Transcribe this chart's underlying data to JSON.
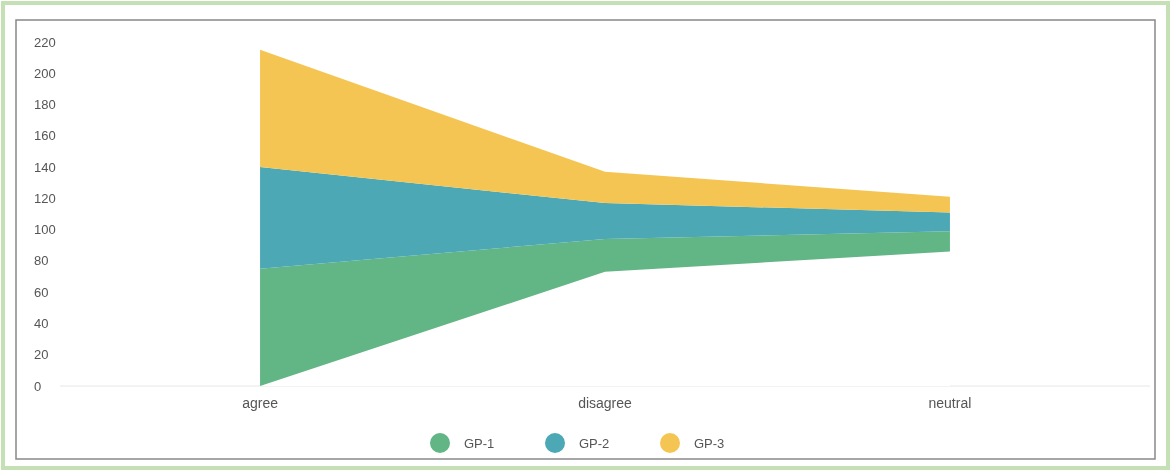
{
  "chart_data": {
    "type": "area",
    "stacked": true,
    "categories": [
      "agree",
      "disagree",
      "neutral"
    ],
    "series": [
      {
        "color": "#ffffff",
        "values": [
          0,
          73,
          86
        ]
      },
      {
        "name": "GP-1",
        "color": "#62b584",
        "values": [
          75,
          21,
          13
        ]
      },
      {
        "name": "GP-2",
        "color": "#4ba8b4",
        "values": [
          65,
          23,
          12
        ]
      },
      {
        "name": "GP-3",
        "color": "#f5c554",
        "values": [
          75,
          20,
          10
        ]
      }
    ],
    "ylim": [
      0,
      220
    ],
    "yticks": [
      0,
      20,
      40,
      60,
      80,
      100,
      120,
      140,
      160,
      180,
      200,
      220
    ],
    "grid": false,
    "legend": "bottom"
  }
}
